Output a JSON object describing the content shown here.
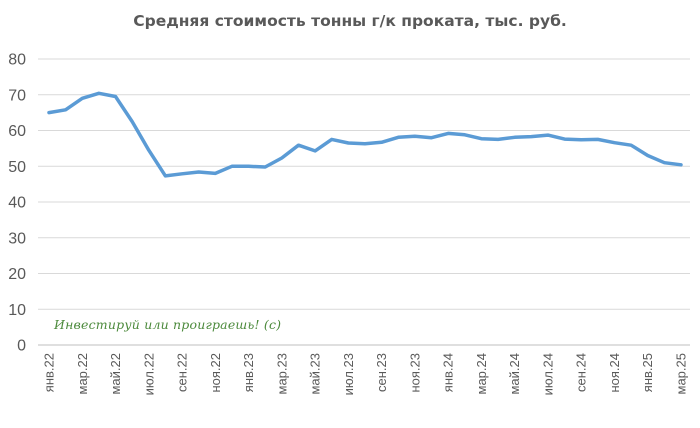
{
  "chart_data": {
    "type": "line",
    "title": "Средняя стоимость тонны г/к проката, тыс. руб.",
    "xlabel": "",
    "ylabel": "",
    "ylim": [
      0,
      80
    ],
    "yticks": [
      0,
      10,
      20,
      30,
      40,
      50,
      60,
      70,
      80
    ],
    "grid": true,
    "legend": "none",
    "line_color": "#5b9bd5",
    "x": [
      "янв.22",
      "фев.22",
      "мар.22",
      "апр.22",
      "май.22",
      "июн.22",
      "июл.22",
      "авг.22",
      "сен.22",
      "окт.22",
      "ноя.22",
      "дек.22",
      "янв.23",
      "фев.23",
      "мар.23",
      "апр.23",
      "май.23",
      "июн.23",
      "июл.23",
      "авг.23",
      "сен.23",
      "окт.23",
      "ноя.23",
      "дек.23",
      "янв.24",
      "фев.24",
      "мар.24",
      "апр.24",
      "май.24",
      "июн.24",
      "июл.24",
      "авг.24",
      "сен.24",
      "окт.24",
      "ноя.24",
      "дек.24",
      "янв.25",
      "фев.25",
      "мар.25"
    ],
    "x_tick_labels": [
      "янв.22",
      "мар.22",
      "май.22",
      "июл.22",
      "сен.22",
      "ноя.22",
      "янв.23",
      "мар.23",
      "май.23",
      "июл.23",
      "сен.23",
      "ноя.23",
      "янв.24",
      "мар.24",
      "май.24",
      "июл.24",
      "сен.24",
      "ноя.24",
      "янв.25",
      "мар.25"
    ],
    "series": [
      {
        "values": [
          65.0,
          65.8,
          69.0,
          70.4,
          69.5,
          62.5,
          54.5,
          47.3,
          47.9,
          48.4,
          48.0,
          50.0,
          50.0,
          49.8,
          52.3,
          55.9,
          54.3,
          57.5,
          56.5,
          56.3,
          56.7,
          58.1,
          58.4,
          58.0,
          59.2,
          58.8,
          57.7,
          57.5,
          58.1,
          58.3,
          58.7,
          57.6,
          57.4,
          57.5,
          56.6,
          55.9,
          53.0,
          51.0,
          50.4
        ]
      }
    ]
  },
  "watermark": "Инвестируй или проиграешь! (с)"
}
